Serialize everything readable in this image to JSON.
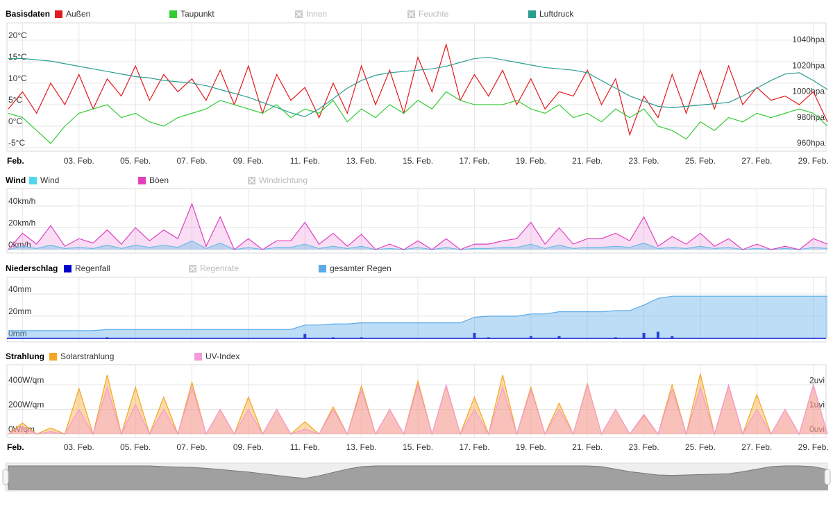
{
  "chart_data": [
    {
      "type": "line",
      "title": "Basisdaten",
      "x": [
        0.5,
        1,
        1.5,
        2,
        2.5,
        3,
        3.5,
        4,
        4.5,
        5,
        5.5,
        6,
        6.5,
        7,
        7.5,
        8,
        8.5,
        9,
        9.5,
        10,
        10.5,
        11,
        11.5,
        12,
        12.5,
        13,
        13.5,
        14,
        14.5,
        15,
        15.5,
        16,
        16.5,
        17,
        17.5,
        18,
        18.5,
        19,
        19.5,
        20,
        20.5,
        21,
        21.5,
        22,
        22.5,
        23,
        23.5,
        24,
        24.5,
        25,
        25.5,
        26,
        26.5,
        27,
        27.5,
        28,
        28.5,
        29,
        29.5
      ],
      "xlim": [
        0.45,
        29.45
      ],
      "xticks": [
        {
          "value": 1,
          "label": "Feb."
        },
        {
          "value": 3,
          "label": "03. Feb."
        },
        {
          "value": 5,
          "label": "05. Feb."
        },
        {
          "value": 7,
          "label": "07. Feb."
        },
        {
          "value": 9,
          "label": "09. Feb."
        },
        {
          "value": 11,
          "label": "11. Feb."
        },
        {
          "value": 13,
          "label": "13. Feb."
        },
        {
          "value": 15,
          "label": "15. Feb."
        },
        {
          "value": 17,
          "label": "17. Feb."
        },
        {
          "value": 19,
          "label": "19. Feb."
        },
        {
          "value": 21,
          "label": "21. Feb."
        },
        {
          "value": 23,
          "label": "23. Feb."
        },
        {
          "value": 25,
          "label": "25. Feb."
        },
        {
          "value": 27,
          "label": "27. Feb."
        },
        {
          "value": 29,
          "label": "29. Feb."
        }
      ],
      "ylim": [
        -5.8,
        24
      ],
      "yticks": [
        {
          "value": -5,
          "label": "-5°C"
        },
        {
          "value": 0,
          "label": "0°C"
        },
        {
          "value": 5,
          "label": "5°C"
        },
        {
          "value": 10,
          "label": "10°C"
        },
        {
          "value": 15,
          "label": "15°C"
        },
        {
          "value": 20,
          "label": "20°C"
        }
      ],
      "y2lim": [
        957.3,
        1056.6
      ],
      "y2ticks": [
        {
          "value": 960,
          "label": "960hpa"
        },
        {
          "value": 980,
          "label": "980hpa"
        },
        {
          "value": 1000,
          "label": "1000hpa"
        },
        {
          "value": 1020,
          "label": "1020hpa"
        },
        {
          "value": 1040,
          "label": "1040hpa"
        }
      ],
      "grid": true,
      "series": [
        {
          "name": "Außen",
          "color": "#e3191c",
          "type": "line",
          "values": [
            4,
            8,
            3,
            10,
            5,
            12,
            4,
            11,
            7,
            14,
            6,
            12,
            8,
            11,
            6,
            13,
            5,
            14,
            3,
            12,
            6,
            9,
            2,
            10,
            3,
            14,
            5,
            13,
            3,
            16,
            8,
            19,
            6,
            12,
            7,
            13,
            5,
            11,
            4,
            8,
            7,
            13,
            5,
            11,
            -2,
            7,
            2,
            12,
            3,
            13,
            4,
            14,
            5,
            9,
            6,
            7,
            5,
            8,
            1
          ]
        },
        {
          "name": "Taupunkt",
          "color": "#33cc33",
          "type": "line",
          "values": [
            3,
            2,
            -1,
            -4,
            0,
            3,
            4,
            5,
            2,
            3,
            1,
            0,
            2,
            3,
            4,
            6,
            5,
            4,
            3,
            5,
            2,
            4,
            3,
            6,
            1,
            4,
            2,
            5,
            3,
            6,
            4,
            8,
            6,
            5,
            5,
            5,
            6,
            4,
            3,
            5,
            2,
            3,
            1,
            4,
            2,
            4,
            0,
            -1,
            -3,
            1,
            -1,
            2,
            1,
            3,
            2,
            3,
            4,
            3,
            0
          ]
        },
        {
          "name": "Innen",
          "visible": false
        },
        {
          "name": "Feuchte",
          "visible": false
        },
        {
          "name": "Luftdruck",
          "color": "#2a9d8f",
          "type": "line",
          "axis": "y2",
          "values": [
            1029,
            1029,
            1028,
            1027,
            1025,
            1023,
            1021,
            1019,
            1017,
            1015,
            1014,
            1012,
            1011,
            1010,
            1008,
            1005,
            1002,
            999,
            995,
            991,
            987,
            984,
            990,
            998,
            1006,
            1012,
            1016,
            1018,
            1019,
            1020,
            1021,
            1023,
            1026,
            1029,
            1030,
            1028,
            1026,
            1024,
            1022,
            1021,
            1020,
            1018,
            1012,
            1006,
            1000,
            996,
            992,
            991,
            992,
            993,
            994,
            995,
            1000,
            1006,
            1012,
            1017,
            1018,
            1012,
            1005
          ]
        }
      ]
    },
    {
      "type": "line",
      "title": "Wind",
      "x": [
        0.5,
        1,
        1.5,
        2,
        2.5,
        3,
        3.5,
        4,
        4.5,
        5,
        5.5,
        6,
        6.5,
        7,
        7.5,
        8,
        8.5,
        9,
        9.5,
        10,
        10.5,
        11,
        11.5,
        12,
        12.5,
        13,
        13.5,
        14,
        14.5,
        15,
        15.5,
        16,
        16.5,
        17,
        17.5,
        18,
        18.5,
        19,
        19.5,
        20,
        20.5,
        21,
        21.5,
        22,
        22.5,
        23,
        23.5,
        24,
        24.5,
        25,
        25.5,
        26,
        26.5,
        27,
        27.5,
        28,
        28.5,
        29,
        29.5
      ],
      "xlim": [
        0.45,
        29.45
      ],
      "xticks": [
        1,
        3,
        5,
        7,
        9,
        11,
        13,
        15,
        17,
        19,
        21,
        23,
        25,
        27,
        29
      ],
      "xtick_labels": false,
      "ylim": [
        -3.2,
        55.9
      ],
      "yticks": [
        {
          "value": 0,
          "label": "0km/h"
        },
        {
          "value": 20,
          "label": "20km/h"
        },
        {
          "value": 40,
          "label": "40km/h"
        }
      ],
      "grid": true,
      "series": [
        {
          "name": "Wind",
          "color": "#4fd8ee",
          "type": "area",
          "values": [
            0,
            3,
            1,
            4,
            1,
            2,
            1,
            4,
            1,
            4,
            2,
            4,
            2,
            8,
            1,
            6,
            0,
            2,
            0,
            2,
            2,
            5,
            1,
            3,
            1,
            3,
            0,
            1,
            0,
            2,
            0,
            2,
            0,
            1,
            1,
            2,
            2,
            5,
            1,
            4,
            1,
            2,
            2,
            3,
            2,
            6,
            1,
            2,
            1,
            3,
            1,
            2,
            0,
            1,
            0,
            1,
            0,
            2,
            1
          ]
        },
        {
          "name": "Böen",
          "color": "#e040c0",
          "type": "area",
          "values": [
            0,
            15,
            5,
            22,
            3,
            10,
            6,
            18,
            5,
            20,
            8,
            18,
            10,
            42,
            3,
            30,
            0,
            10,
            0,
            8,
            8,
            25,
            5,
            15,
            3,
            14,
            0,
            5,
            0,
            8,
            0,
            10,
            0,
            5,
            5,
            8,
            10,
            25,
            5,
            20,
            5,
            10,
            10,
            15,
            8,
            30,
            3,
            12,
            5,
            15,
            3,
            10,
            0,
            5,
            0,
            3,
            0,
            10,
            5
          ]
        },
        {
          "name": "Windrichtung",
          "visible": false
        }
      ]
    },
    {
      "type": "line",
      "title": "Niederschlag",
      "x": [
        0.5,
        1,
        1.5,
        2,
        2.5,
        3,
        3.5,
        4,
        4.5,
        5,
        5.5,
        6,
        6.5,
        7,
        7.5,
        8,
        8.5,
        9,
        9.5,
        10,
        10.5,
        11,
        11.5,
        12,
        12.5,
        13,
        13.5,
        14,
        14.5,
        15,
        15.5,
        16,
        16.5,
        17,
        17.5,
        18,
        18.5,
        19,
        19.5,
        20,
        20.5,
        21,
        21.5,
        22,
        22.5,
        23,
        23.5,
        24,
        24.5,
        25,
        25.5,
        26,
        26.5,
        27,
        27.5,
        28,
        28.5,
        29,
        29.5
      ],
      "xlim": [
        0.45,
        29.45
      ],
      "xticks": [
        1,
        3,
        5,
        7,
        9,
        11,
        13,
        15,
        17,
        19,
        21,
        23,
        25,
        27,
        29
      ],
      "xtick_labels": false,
      "ylim": [
        -3.1,
        55
      ],
      "yticks": [
        {
          "value": 0,
          "label": "0mm"
        },
        {
          "value": 20,
          "label": "20mm"
        },
        {
          "value": 40,
          "label": "40mm"
        }
      ],
      "grid": true,
      "series": [
        {
          "name": "Regenfall",
          "color": "#0000cc",
          "type": "column",
          "values": [
            0,
            0,
            0,
            0,
            0,
            0,
            0,
            1,
            0,
            0,
            0,
            0,
            0,
            0,
            0,
            0,
            0,
            0,
            0,
            0,
            0,
            4,
            0,
            1,
            0,
            1,
            0,
            0,
            0,
            0,
            0,
            0,
            0,
            5,
            1,
            0,
            0,
            2,
            0,
            2,
            0,
            0,
            0,
            1,
            0,
            5,
            6,
            2,
            0,
            0,
            0,
            0,
            0,
            0,
            0,
            0,
            0,
            0,
            0
          ]
        },
        {
          "name": "Regenrate",
          "visible": false
        },
        {
          "name": "gesamter Regen",
          "color": "#5aaae8",
          "type": "area",
          "values": [
            7,
            7,
            7,
            7,
            7,
            7,
            7,
            8,
            8,
            8,
            8,
            8,
            8,
            8,
            8,
            8,
            8,
            8,
            8,
            8,
            8,
            12,
            12,
            13,
            13,
            14,
            14,
            14,
            14,
            14,
            14,
            14,
            14,
            19,
            20,
            20,
            20,
            22,
            22,
            24,
            24,
            24,
            24,
            25,
            25,
            30,
            36,
            38,
            38,
            38,
            38,
            38,
            38,
            38,
            38,
            38,
            38,
            38,
            38
          ]
        }
      ]
    },
    {
      "type": "line",
      "title": "Strahlung",
      "x": [
        0.5,
        1,
        1.5,
        2,
        2.5,
        3,
        3.5,
        4,
        4.5,
        5,
        5.5,
        6,
        6.5,
        7,
        7.5,
        8,
        8.5,
        9,
        9.5,
        10,
        10.5,
        11,
        11.5,
        12,
        12.5,
        13,
        13.5,
        14,
        14.5,
        15,
        15.5,
        16,
        16.5,
        17,
        17.5,
        18,
        18.5,
        19,
        19.5,
        20,
        20.5,
        21,
        21.5,
        22,
        22.5,
        23,
        23.5,
        24,
        24.5,
        25,
        25.5,
        26,
        26.5,
        27,
        27.5,
        28,
        28.5,
        29,
        29.5
      ],
      "xlim": [
        0.45,
        29.45
      ],
      "xticks": [
        {
          "value": 1,
          "label": "Feb."
        },
        {
          "value": 3,
          "label": "03. Feb."
        },
        {
          "value": 5,
          "label": "05. Feb."
        },
        {
          "value": 7,
          "label": "07. Feb."
        },
        {
          "value": 9,
          "label": "09. Feb."
        },
        {
          "value": 11,
          "label": "11. Feb."
        },
        {
          "value": 13,
          "label": "13. Feb."
        },
        {
          "value": 15,
          "label": "15. Feb."
        },
        {
          "value": 17,
          "label": "17. Feb."
        },
        {
          "value": 19,
          "label": "19. Feb."
        },
        {
          "value": 21,
          "label": "21. Feb."
        },
        {
          "value": 23,
          "label": "23. Feb."
        },
        {
          "value": 25,
          "label": "25. Feb."
        },
        {
          "value": 27,
          "label": "27. Feb."
        },
        {
          "value": 29,
          "label": "29. Feb."
        }
      ],
      "ylim": [
        -28,
        563
      ],
      "yticks": [
        {
          "value": 0,
          "label": "0W/qm"
        },
        {
          "value": 200,
          "label": "200W/qm"
        },
        {
          "value": 400,
          "label": "400W/qm"
        }
      ],
      "y2lim": [
        -0.14,
        2.82
      ],
      "y2ticks": [
        {
          "value": 0,
          "label": "0uvi"
        },
        {
          "value": 1,
          "label": "1uvi"
        },
        {
          "value": 2,
          "label": "2uvi"
        }
      ],
      "grid": true,
      "series": [
        {
          "name": "Solarstrahlung",
          "color": "#f5a623",
          "type": "area",
          "values": [
            0,
            90,
            0,
            50,
            0,
            370,
            0,
            480,
            0,
            380,
            0,
            300,
            0,
            420,
            0,
            200,
            0,
            300,
            0,
            200,
            0,
            100,
            0,
            220,
            0,
            390,
            0,
            200,
            0,
            430,
            0,
            390,
            0,
            300,
            0,
            480,
            0,
            380,
            0,
            250,
            0,
            410,
            0,
            200,
            0,
            150,
            0,
            400,
            0,
            490,
            0,
            390,
            0,
            320,
            0,
            200,
            0,
            400,
            0
          ]
        },
        {
          "name": "UV-Index",
          "color": "#f59ad8",
          "type": "area",
          "axis": "y2",
          "values": [
            0,
            0.3,
            0,
            0.1,
            0,
            1,
            0,
            1.9,
            0,
            1.2,
            0,
            1,
            0,
            1.9,
            0,
            1,
            0,
            1,
            0,
            1,
            0,
            0.2,
            0,
            1,
            0,
            1.8,
            0,
            1,
            0,
            2,
            0,
            2,
            0,
            1,
            0,
            1.9,
            0,
            1.8,
            0,
            1,
            0,
            2,
            0,
            1,
            0,
            0.8,
            0,
            1.8,
            0,
            1.9,
            0,
            2,
            0,
            1,
            0,
            1,
            0,
            2,
            0
          ]
        }
      ]
    }
  ]
}
